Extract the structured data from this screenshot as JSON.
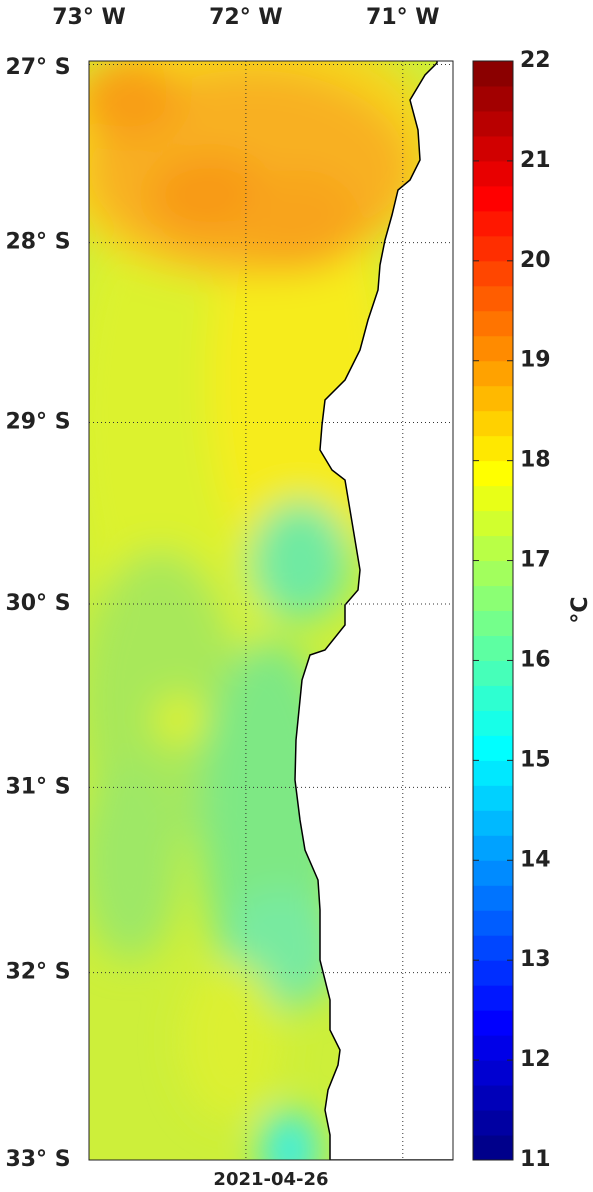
{
  "map": {
    "xlim": [
      -73.0,
      -70.68
    ],
    "ylim": [
      -33.0,
      -26.98
    ],
    "xticks": [
      {
        "value": -73,
        "label": "73° W"
      },
      {
        "value": -72,
        "label": "72° W"
      },
      {
        "value": -71,
        "label": "71° W"
      }
    ],
    "yticks": [
      {
        "value": -27,
        "label": "27° S"
      },
      {
        "value": -28,
        "label": "28° S"
      },
      {
        "value": -29,
        "label": "29° S"
      },
      {
        "value": -30,
        "label": "30° S"
      },
      {
        "value": -31,
        "label": "31° S"
      },
      {
        "value": -32,
        "label": "32° S"
      },
      {
        "value": -33,
        "label": "33° S"
      }
    ],
    "date": "2021-04-26",
    "colorbar": {
      "clim": [
        11,
        22
      ],
      "ticks": [
        11,
        12,
        13,
        14,
        15,
        16,
        17,
        18,
        19,
        20,
        21,
        22
      ],
      "unit": "°C"
    }
  }
}
